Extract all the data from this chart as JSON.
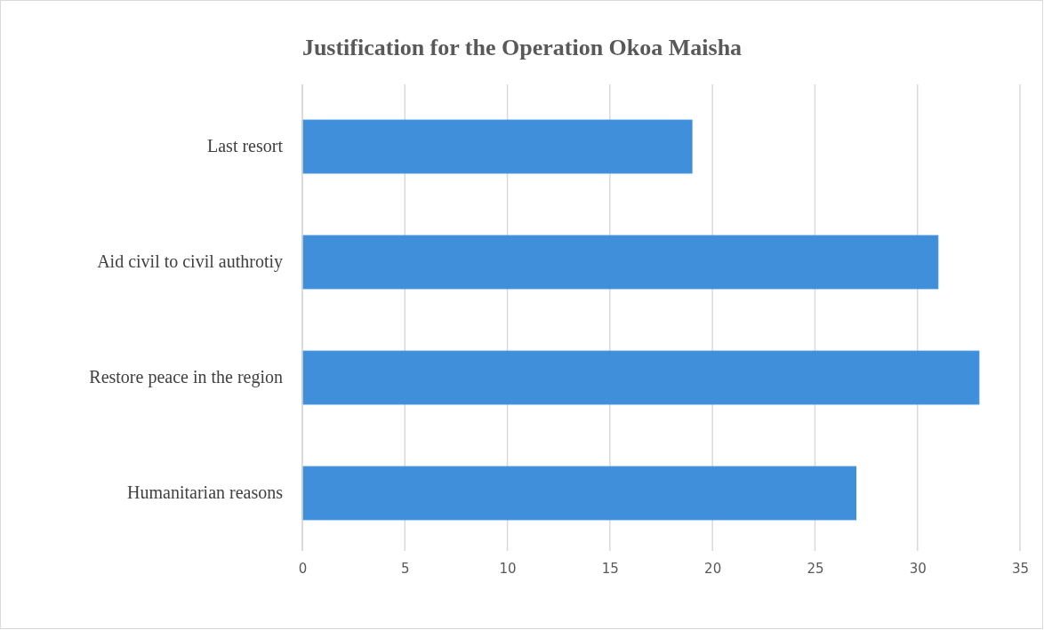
{
  "chart_data": {
    "type": "bar",
    "orientation": "horizontal",
    "title": "Justification for the Operation Okoa Maisha",
    "categories": [
      "Last resort",
      "Aid civil to civil authrotiy",
      "Restore peace in the region",
      "Humanitarian reasons"
    ],
    "values": [
      19,
      31,
      33,
      27
    ],
    "color": "#3f8fdb",
    "xlim": [
      0,
      35
    ],
    "xticks": [
      0,
      5,
      10,
      15,
      20,
      25,
      30,
      35
    ],
    "grid": "x"
  }
}
